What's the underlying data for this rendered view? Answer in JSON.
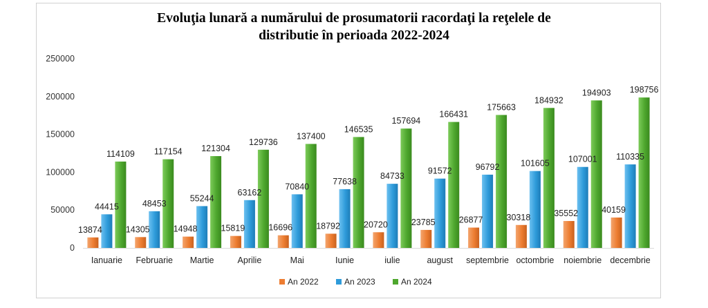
{
  "chart_data": {
    "type": "bar",
    "title_lines": [
      "Evoluţia lunară a numărului de prosumatorii racordaţi la reţelele de",
      "distributie în perioada 2022-2024"
    ],
    "categories": [
      "Ianuarie",
      "Februarie",
      "Martie",
      "Aprilie",
      "Mai",
      "Iunie",
      "iulie",
      "august",
      "septembrie",
      "octombrie",
      "noiembrie",
      "decembrie"
    ],
    "series": [
      {
        "name": "An 2022",
        "color": "#ED7D31",
        "values": [
          13874,
          14305,
          14948,
          15819,
          16696,
          18792,
          20720,
          23785,
          26877,
          30318,
          35552,
          40159
        ]
      },
      {
        "name": "An 2023",
        "color": "#2E9BDA",
        "values": [
          44415,
          48453,
          55244,
          63162,
          70840,
          77638,
          84733,
          91572,
          96792,
          101605,
          107001,
          110335
        ]
      },
      {
        "name": "An 2024",
        "color": "#4EA72E",
        "values": [
          114109,
          117154,
          121304,
          129736,
          137400,
          146535,
          157694,
          166431,
          175663,
          184932,
          194903,
          198756
        ]
      }
    ],
    "ylim": [
      0,
      250000
    ],
    "yticks": [
      0,
      50000,
      100000,
      150000,
      200000,
      250000
    ],
    "xlabel": "",
    "ylabel": "",
    "grid": false,
    "legend": "bottom-center"
  }
}
